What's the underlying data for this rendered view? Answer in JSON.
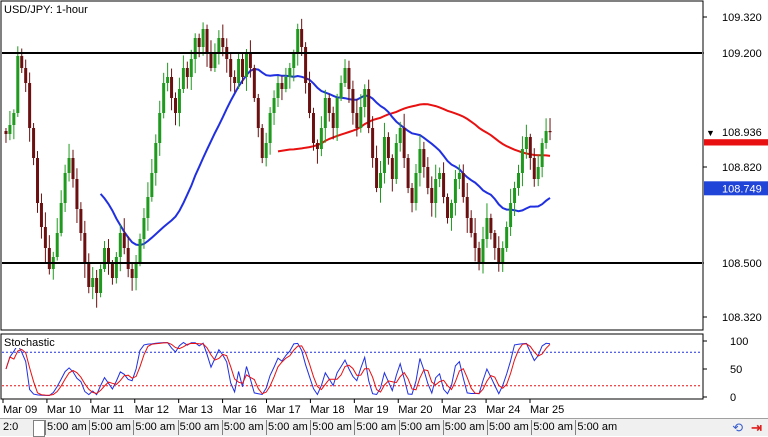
{
  "chart_data": [
    {
      "type": "candlestick",
      "title": "USD/JPY: 1-hour",
      "ylim": [
        108.28,
        109.37
      ],
      "y_ticks": [
        "109.320",
        "109.200",
        "108.820",
        "108.500",
        "108.320"
      ],
      "y_tick_values": [
        109.32,
        109.2,
        108.82,
        108.5,
        108.32
      ],
      "price_tags": [
        {
          "label": "109.200",
          "value": 109.2,
          "bg": "#ffffff",
          "fg": "#000000"
        },
        {
          "label": "108.936",
          "value": 108.936,
          "bg": "#ffffff",
          "fg": "#000000",
          "marker": "▼"
        },
        {
          "label": "108.749",
          "value": 108.749,
          "bg": "#2044d8",
          "fg": "#ffffff"
        },
        {
          "label": "108.500",
          "value": 108.5,
          "bg": "#ffffff",
          "fg": "#000000"
        }
      ],
      "hidden_tag": {
        "value": 108.915,
        "bg": "#e81010"
      },
      "horizontal_lines": [
        109.2,
        108.5
      ],
      "x_labels": [
        "Mar 09",
        "Mar 10",
        "Mar 11",
        "Mar 12",
        "Mar 13",
        "Mar 16",
        "Mar 17",
        "Mar 18",
        "Mar 19",
        "Mar 20",
        "Mar 23",
        "Mar 24",
        "Mar 25"
      ],
      "close": [
        108.93,
        108.96,
        109.0,
        109.19,
        109.15,
        109.1,
        108.95,
        108.85,
        108.7,
        108.62,
        108.55,
        108.48,
        108.52,
        108.6,
        108.7,
        108.8,
        108.85,
        108.78,
        108.68,
        108.6,
        108.5,
        108.42,
        108.45,
        108.4,
        108.48,
        108.55,
        108.5,
        108.45,
        108.52,
        108.6,
        108.55,
        108.48,
        108.45,
        108.5,
        108.58,
        108.65,
        108.72,
        108.8,
        108.9,
        109.0,
        109.1,
        109.12,
        109.05,
        109.0,
        109.08,
        109.15,
        109.12,
        109.18,
        109.25,
        109.22,
        109.28,
        109.2,
        109.15,
        109.2,
        109.25,
        109.22,
        109.18,
        109.12,
        109.1,
        109.18,
        109.12,
        109.2,
        109.15,
        109.05,
        108.95,
        108.85,
        108.9,
        109.0,
        109.05,
        109.1,
        109.08,
        109.12,
        109.15,
        109.2,
        109.28,
        109.22,
        109.1,
        109.0,
        108.9,
        108.88,
        108.95,
        109.05,
        109.0,
        108.95,
        109.05,
        109.1,
        109.15,
        109.08,
        109.0,
        108.95,
        109.02,
        109.08,
        108.95,
        108.85,
        108.75,
        108.8,
        108.92,
        108.85,
        108.78,
        108.9,
        108.95,
        108.85,
        108.75,
        108.7,
        108.8,
        108.88,
        108.82,
        108.75,
        108.7,
        108.78,
        108.8,
        108.72,
        108.65,
        108.7,
        108.78,
        108.8,
        108.72,
        108.65,
        108.6,
        108.55,
        108.5,
        108.58,
        108.65,
        108.6,
        108.55,
        108.5,
        108.55,
        108.62,
        108.7,
        108.75,
        108.8,
        108.88,
        108.92,
        108.85,
        108.78,
        108.82,
        108.9,
        108.94,
        108.936
      ],
      "indicators": [
        {
          "kind": "sma-long",
          "color": "#e81010"
        },
        {
          "kind": "sma-short",
          "color": "#2030e0"
        }
      ],
      "colors": {
        "bull": "#1f9a1f",
        "bear": "#6b1010"
      }
    },
    {
      "type": "line",
      "title": "Stochastic",
      "ylim": [
        0,
        100
      ],
      "y_ticks": [
        "100",
        "50",
        "0"
      ],
      "y_tick_values": [
        100,
        50,
        0
      ],
      "levels": [
        80,
        20
      ],
      "level_colors": [
        "#2030e0",
        "#e81010"
      ],
      "series_colors": [
        "#2030e0",
        "#e81010"
      ]
    }
  ],
  "bottom_bar": {
    "cells": [
      "2:0",
      "5:00 am",
      "5:00 am",
      "5:00 am",
      "5:00 am",
      "5:00 am",
      "5:00 am",
      "5:00 am",
      "5:00 am",
      "5:00 am",
      "5:00 am",
      "5:00 am",
      "5:00 am",
      "5:00 am"
    ],
    "icons": [
      "sync-icon",
      "scroll-end-icon"
    ]
  }
}
